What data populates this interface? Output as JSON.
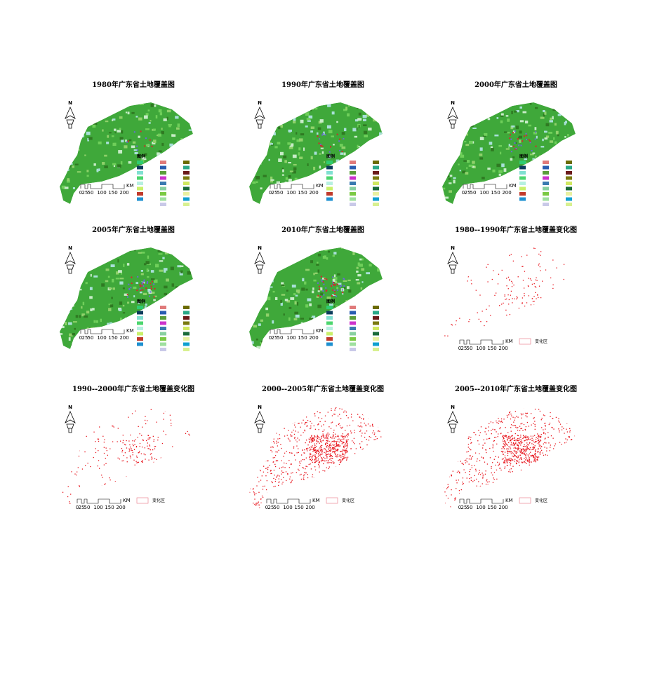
{
  "panels": [
    {
      "title": "1980年广东省土地覆盖图",
      "legend_title": "图例"
    },
    {
      "title": "1990年广东省土地覆盖图",
      "legend_title": "图例"
    },
    {
      "title": "2000年广东省土地覆盖图",
      "legend_title": "图例"
    },
    {
      "title": "2005年广东省土地覆盖图",
      "legend_title": "图例"
    },
    {
      "title": "2010年广东省土地覆盖图",
      "legend_title": "图例"
    },
    {
      "title": "1980--1990年广东省土地覆盖变化图",
      "legend_label": "变化区"
    },
    {
      "title": "1990--2000年广东省土地覆盖变化图",
      "legend_label": "变化区"
    },
    {
      "title": "2000--2005年广东省土地覆盖变化图",
      "legend_label": "变化区"
    },
    {
      "title": "2005--2010年广东省土地覆盖变化图",
      "legend_label": "变化区"
    }
  ],
  "north": "N",
  "scale": {
    "labels": [
      "0",
      "25",
      "50",
      "100",
      "150",
      "200"
    ],
    "unit": "KM"
  }
}
